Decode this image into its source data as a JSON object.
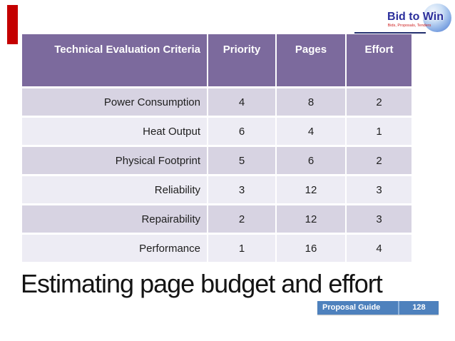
{
  "logo": {
    "name": "Bid to Win",
    "tagline": "Bids, Proposals, Tenders"
  },
  "table": {
    "headers": [
      "Technical Evaluation Criteria",
      "Priority",
      "Pages",
      "Effort"
    ],
    "rows": [
      {
        "criteria": "Power Consumption",
        "priority": "4",
        "pages": "8",
        "effort": "2"
      },
      {
        "criteria": "Heat Output",
        "priority": "6",
        "pages": "4",
        "effort": "1"
      },
      {
        "criteria": "Physical Footprint",
        "priority": "5",
        "pages": "6",
        "effort": "2"
      },
      {
        "criteria": "Reliability",
        "priority": "3",
        "pages": "12",
        "effort": "3"
      },
      {
        "criteria": "Repairability",
        "priority": "2",
        "pages": "12",
        "effort": "3"
      },
      {
        "criteria": "Performance",
        "priority": "1",
        "pages": "16",
        "effort": "4"
      }
    ]
  },
  "title": {
    "text": "Estimating page budget and effort"
  },
  "footer": {
    "label": "Proposal Guide",
    "page": "128"
  },
  "colors": {
    "header_purple": "#7C6A9D",
    "row_dark": "#D7D3E2",
    "row_light": "#EDECF4",
    "accent_red_bar": "#C40000",
    "badge_blue": "#4E81BD",
    "logo_blue": "#2B2F9C",
    "tagline_red": "#CE2020"
  }
}
